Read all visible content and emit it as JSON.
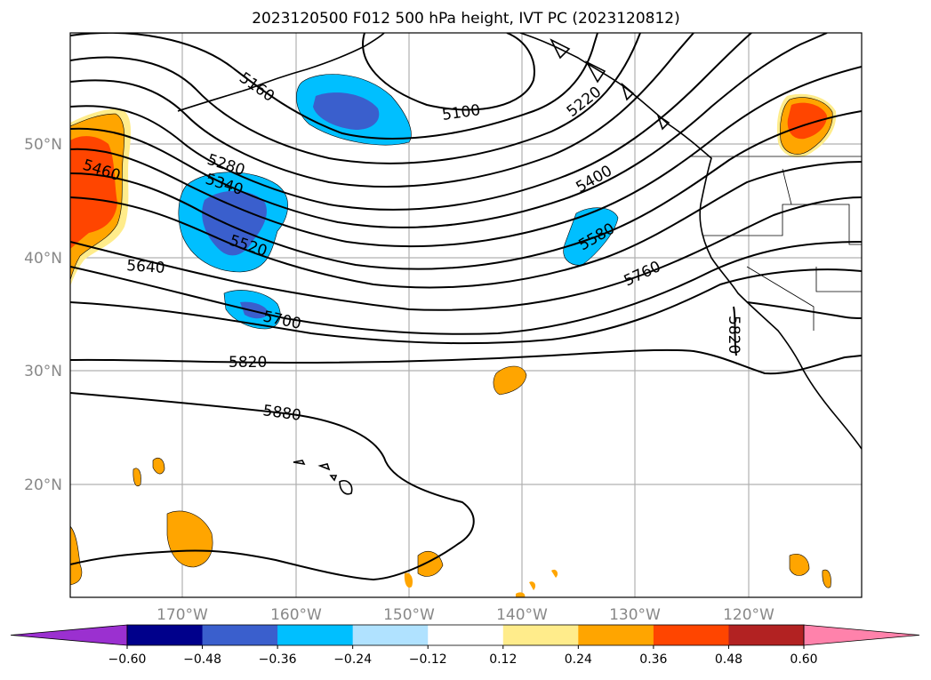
{
  "title": "2023120500 F012 500 hPa height, IVT PC (2023120812)",
  "lat_labels": [
    "50°N",
    "40°N",
    "30°N",
    "20°N"
  ],
  "lon_labels": [
    "170°W",
    "160°W",
    "150°W",
    "140°W",
    "130°W",
    "120°W"
  ],
  "colorbar": {
    "ticks": [
      "−0.60",
      "−0.48",
      "−0.36",
      "−0.24",
      "−0.12",
      "0.12",
      "0.24",
      "0.36",
      "0.48",
      "0.60"
    ],
    "colors": [
      "#9b30d0",
      "#00008b",
      "#3a5fcd",
      "#00bfff",
      "#b0e2ff",
      "#ffffff",
      "#ffec8b",
      "#ffa500",
      "#ff4500",
      "#b22222",
      "#ff82ab"
    ]
  },
  "contour_labels": {
    "c5160": "5160",
    "c5100": "5100",
    "c5220": "5220",
    "c5280": "5280",
    "c5340": "5340",
    "c5400": "5400",
    "c5460": "5460",
    "c5520": "5520",
    "c5580": "5580",
    "c5640": "5640",
    "c5700": "5700",
    "c5760": "5760",
    "c5820a": "5820",
    "c5820b": "5820",
    "c5880": "5880"
  }
}
